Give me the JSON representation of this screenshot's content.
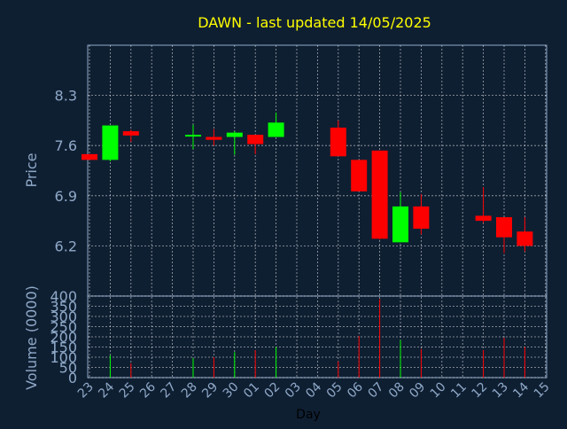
{
  "chart_data": {
    "type": "candlestick",
    "title": "DAWN - last updated 14/05/2025",
    "xlabel": "Day",
    "ylabel_price": "Price",
    "ylabel_volume": "Volume (0000)",
    "price_ticks": [
      "6.2",
      "6.9",
      "7.6",
      "8.3"
    ],
    "price_range": [
      5.5,
      9.0
    ],
    "volume_ticks": [
      "0",
      "50",
      "100",
      "150",
      "200",
      "250",
      "300",
      "350",
      "400"
    ],
    "volume_range": [
      0,
      400
    ],
    "grid": true,
    "colors": {
      "background": "#0f1f32",
      "up": "#00ff00",
      "down": "#ff0000",
      "title": "#ffff00",
      "axis_text": "#8fa9c8",
      "grid": "#ffffff"
    },
    "days": [
      "23",
      "24",
      "25",
      "26",
      "27",
      "28",
      "29",
      "30",
      "01",
      "02",
      "03",
      "04",
      "05",
      "06",
      "07",
      "08",
      "09",
      "10",
      "11",
      "12",
      "13",
      "14",
      "15"
    ],
    "candles": [
      {
        "day": "23",
        "open": 7.48,
        "high": 7.48,
        "low": 7.4,
        "close": 7.4,
        "volume": 0
      },
      {
        "day": "24",
        "open": 7.4,
        "high": 7.88,
        "low": 7.38,
        "close": 7.88,
        "volume": 110
      },
      {
        "day": "25",
        "open": 7.8,
        "high": 7.82,
        "low": 7.65,
        "close": 7.74,
        "volume": 70
      },
      {
        "day": "28",
        "open": 7.73,
        "high": 7.89,
        "low": 7.55,
        "close": 7.75,
        "volume": 95
      },
      {
        "day": "29",
        "open": 7.72,
        "high": 7.83,
        "low": 7.6,
        "close": 7.68,
        "volume": 100
      },
      {
        "day": "30",
        "open": 7.72,
        "high": 7.8,
        "low": 7.47,
        "close": 7.78,
        "volume": 125
      },
      {
        "day": "01",
        "open": 7.75,
        "high": 7.75,
        "low": 7.48,
        "close": 7.62,
        "volume": 135
      },
      {
        "day": "02",
        "open": 7.72,
        "high": 8.06,
        "low": 7.72,
        "close": 7.92,
        "volume": 150
      },
      {
        "day": "05",
        "open": 7.85,
        "high": 7.95,
        "low": 7.45,
        "close": 7.45,
        "volume": 80
      },
      {
        "day": "06",
        "open": 7.4,
        "high": 7.4,
        "low": 6.96,
        "close": 6.96,
        "volume": 205
      },
      {
        "day": "07",
        "open": 7.53,
        "high": 7.53,
        "low": 6.29,
        "close": 6.3,
        "volume": 385
      },
      {
        "day": "08",
        "open": 6.25,
        "high": 6.95,
        "low": 6.25,
        "close": 6.75,
        "volume": 185
      },
      {
        "day": "09",
        "open": 6.75,
        "high": 6.92,
        "low": 6.36,
        "close": 6.44,
        "volume": 140
      },
      {
        "day": "12",
        "open": 6.62,
        "high": 7.02,
        "low": 6.52,
        "close": 6.55,
        "volume": 135
      },
      {
        "day": "13",
        "open": 6.6,
        "high": 6.6,
        "low": 6.1,
        "close": 6.32,
        "volume": 195
      },
      {
        "day": "14",
        "open": 6.4,
        "high": 6.6,
        "low": 6.12,
        "close": 6.2,
        "volume": 150
      }
    ]
  }
}
